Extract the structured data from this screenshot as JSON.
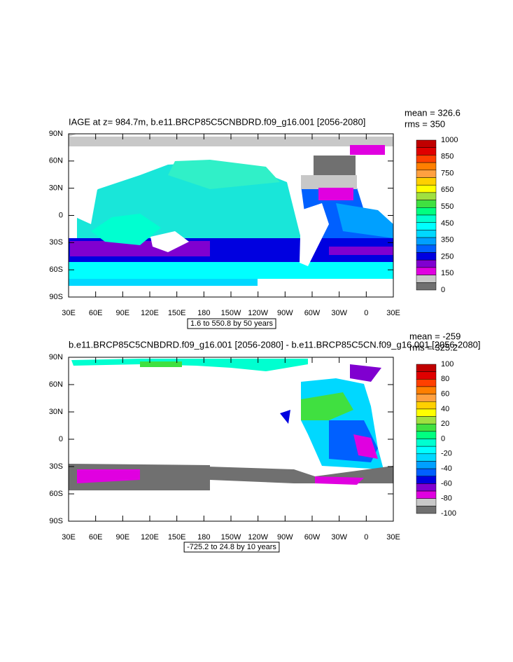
{
  "panels": [
    {
      "title": "IAGE at z= 984.7m, b.e11.BRCP85C5CNBDRD.f09_g16.001 [2056-2080]",
      "stats": [
        "mean = 326.6",
        "rms = 350"
      ],
      "lat_labels": [
        "90N",
        "60N",
        "30N",
        "0",
        "30S",
        "60S",
        "90S"
      ],
      "lon_labels": [
        "30E",
        "60E",
        "90E",
        "120E",
        "150E",
        "180",
        "150W",
        "120W",
        "90W",
        "60W",
        "30W",
        "0",
        "30E"
      ],
      "colorbar": {
        "labels": [
          1000,
          850,
          750,
          650,
          550,
          450,
          350,
          250,
          150,
          0
        ],
        "colors": [
          "#c00000",
          "#e00000",
          "#ff4000",
          "#ff7f00",
          "#ffa040",
          "#ffd000",
          "#ffff00",
          "#a0e040",
          "#40e040",
          "#00ff80",
          "#00ffd0",
          "#00ffff",
          "#00d8ff",
          "#00a0ff",
          "#0060ff",
          "#0000e0",
          "#8000d0",
          "#e000e0",
          "#c8c8c8",
          "#707070"
        ]
      },
      "caption": "1.6 to 550.8 by 50 years"
    },
    {
      "title": "b.e11.BRCP85C5CNBDRD.f09_g16.001 [2056-2080] - b.e11.BRCP85C5CN.f09_g16.001 [2056-2080]",
      "stats": [
        "mean = -259",
        "rms = 325.2"
      ],
      "lat_labels": [
        "90N",
        "60N",
        "30N",
        "0",
        "30S",
        "60S",
        "90S"
      ],
      "lon_labels": [
        "30E",
        "60E",
        "90E",
        "120E",
        "150E",
        "180",
        "150W",
        "120W",
        "90W",
        "60W",
        "30W",
        "0",
        "30E"
      ],
      "colorbar": {
        "labels": [
          100,
          80,
          60,
          40,
          20,
          0,
          -20,
          -40,
          -60,
          -80,
          -100
        ],
        "colors": [
          "#c00000",
          "#e00000",
          "#ff4000",
          "#ff7f00",
          "#ffa040",
          "#ffd000",
          "#ffff00",
          "#a0e040",
          "#40e040",
          "#00ff80",
          "#00ffd0",
          "#00ffff",
          "#00d8ff",
          "#00a0ff",
          "#0060ff",
          "#0000e0",
          "#8000d0",
          "#e000e0",
          "#c8c8c8",
          "#707070"
        ]
      },
      "caption": "-725.2 to 24.8 by 10 years"
    }
  ]
}
